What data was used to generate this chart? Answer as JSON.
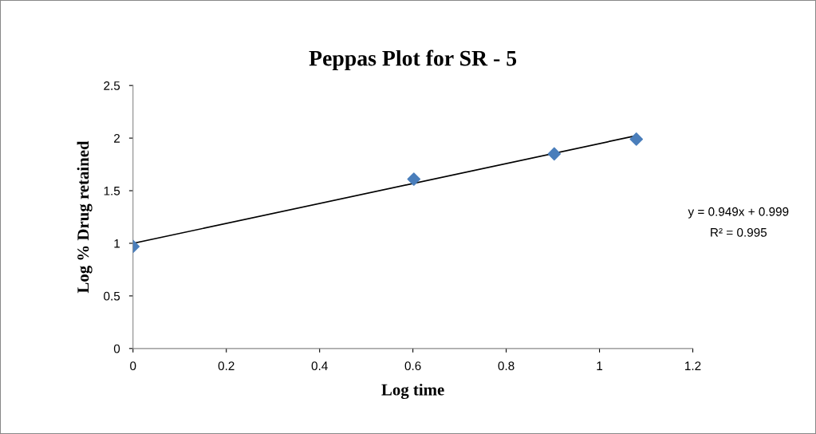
{
  "chart_data": {
    "type": "scatter",
    "title": "Peppas Plot for SR - 5",
    "xlabel": "Log time",
    "ylabel": "Log % Drug retained",
    "series": [
      {
        "color": "#4a7ebb",
        "x": [
          0,
          0.602,
          0.903,
          1.079
        ],
        "values": [
          0.97,
          1.61,
          1.85,
          1.99
        ],
        "marker": "diamond"
      },
      {
        "type": "line",
        "color": "#000000",
        "x": [
          0,
          1.079
        ],
        "values": [
          0.999,
          2.023
        ],
        "line_style": "solid"
      }
    ],
    "xlim": [
      0,
      1.2
    ],
    "xticks": [
      0,
      0.2,
      0.4,
      0.6,
      0.8,
      1,
      1.2
    ],
    "ylim": [
      0,
      2.5
    ],
    "yticks": [
      0,
      0.5,
      1,
      1.5,
      2,
      2.5
    ],
    "annotations": [
      "y = 0.949x + 0.999",
      "R² = 0.995"
    ],
    "grid": false,
    "legend": false
  }
}
